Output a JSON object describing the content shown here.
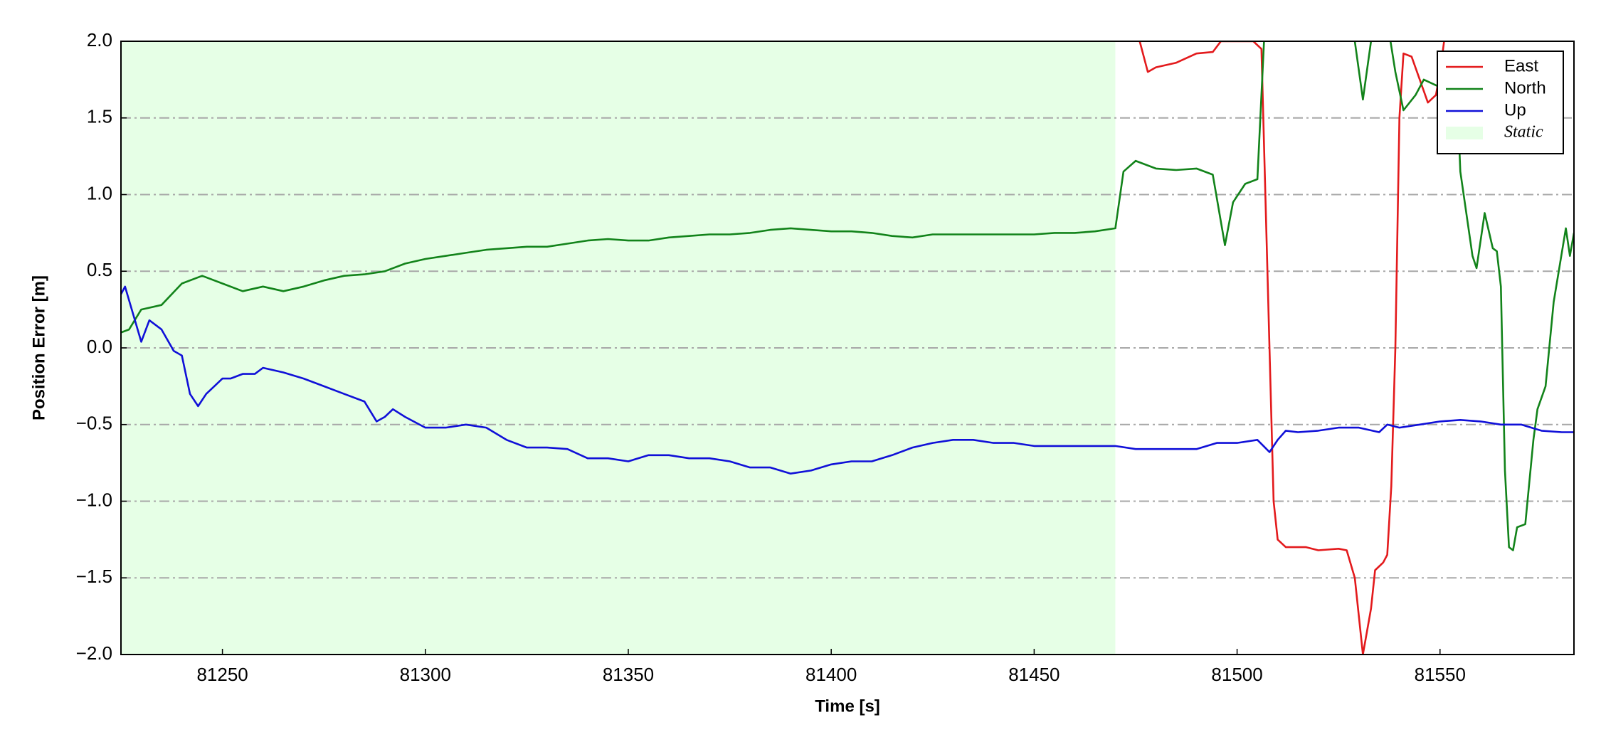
{
  "chart_data": {
    "type": "line",
    "xlabel": "Time [s]",
    "ylabel": "Position Error [m]",
    "xlim": [
      81225,
      81583
    ],
    "ylim": [
      -2.0,
      2.0
    ],
    "xticks": [
      81250,
      81300,
      81350,
      81400,
      81450,
      81500,
      81550
    ],
    "yticks": [
      {
        "value": -2.0,
        "label": "−2.0"
      },
      {
        "value": -1.5,
        "label": "−1.5"
      },
      {
        "value": -1.0,
        "label": "−1.0"
      },
      {
        "value": -0.5,
        "label": "−0.5"
      },
      {
        "value": 0.0,
        "label": "0.0"
      },
      0.5,
      {
        "value": 1.0,
        "label": "1.0"
      },
      1.5,
      {
        "value": 2.0,
        "label": "2.0"
      }
    ],
    "grid": true,
    "legend": "upper right",
    "shaded_regions": [
      {
        "name": "Static",
        "color": "#e6ffe6",
        "x": [
          81225,
          81470
        ]
      }
    ],
    "series": [
      {
        "name": "East",
        "color": "#e31a1c",
        "x": [
          81474,
          81476,
          81478,
          81480,
          81485,
          81490,
          81494,
          81496,
          81500,
          81504,
          81506,
          81509,
          81510,
          81512,
          81517,
          81520,
          81525,
          81527,
          81529,
          81531,
          81533,
          81534,
          81536,
          81537,
          81538,
          81539,
          81540,
          81541,
          81543,
          81545,
          81547,
          81549,
          81550,
          81551,
          81552
        ],
        "values": [
          2.3,
          2.0,
          1.8,
          1.83,
          1.86,
          1.92,
          1.93,
          2.0,
          2.0,
          2.0,
          1.95,
          -1.0,
          -1.25,
          -1.3,
          -1.3,
          -1.32,
          -1.31,
          -1.32,
          -1.5,
          -2.0,
          -1.7,
          -1.45,
          -1.4,
          -1.35,
          -0.9,
          0.0,
          1.5,
          1.92,
          1.9,
          1.75,
          1.6,
          1.65,
          1.8,
          2.0,
          2.2
        ]
      },
      {
        "name": "North",
        "color": "#12831a",
        "x": [
          81225,
          81227,
          81230,
          81235,
          81240,
          81245,
          81250,
          81255,
          81260,
          81265,
          81270,
          81275,
          81280,
          81285,
          81290,
          81295,
          81300,
          81305,
          81310,
          81315,
          81320,
          81325,
          81330,
          81335,
          81340,
          81345,
          81350,
          81355,
          81360,
          81365,
          81370,
          81375,
          81380,
          81385,
          81390,
          81395,
          81400,
          81405,
          81410,
          81415,
          81420,
          81425,
          81430,
          81435,
          81440,
          81445,
          81450,
          81455,
          81460,
          81465,
          81470,
          81472,
          81475,
          81480,
          81485,
          81490,
          81494,
          81497,
          81499,
          81502,
          81505,
          81507,
          81529,
          81531,
          81533,
          81536,
          81539,
          81541,
          81544,
          81546,
          81550,
          81554,
          81555,
          81558,
          81559,
          81561,
          81563,
          81564,
          81565,
          81566,
          81567,
          81568,
          81569,
          81571,
          81573,
          81574,
          81576,
          81578,
          81581,
          81582,
          81583
        ],
        "values": [
          0.1,
          0.12,
          0.25,
          0.28,
          0.42,
          0.47,
          0.42,
          0.37,
          0.4,
          0.37,
          0.4,
          0.44,
          0.47,
          0.48,
          0.5,
          0.55,
          0.58,
          0.6,
          0.62,
          0.64,
          0.65,
          0.66,
          0.66,
          0.68,
          0.7,
          0.71,
          0.7,
          0.7,
          0.72,
          0.73,
          0.74,
          0.74,
          0.75,
          0.77,
          0.78,
          0.77,
          0.76,
          0.76,
          0.75,
          0.73,
          0.72,
          0.74,
          0.74,
          0.74,
          0.74,
          0.74,
          0.74,
          0.75,
          0.75,
          0.76,
          0.78,
          1.15,
          1.22,
          1.17,
          1.16,
          1.17,
          1.13,
          0.67,
          0.95,
          1.07,
          1.1,
          2.2,
          2.0,
          1.62,
          2.0,
          2.3,
          1.8,
          1.55,
          1.65,
          1.75,
          1.7,
          1.8,
          1.15,
          0.6,
          0.52,
          0.88,
          0.65,
          0.63,
          0.4,
          -0.8,
          -1.3,
          -1.32,
          -1.17,
          -1.15,
          -0.6,
          -0.4,
          -0.25,
          0.3,
          0.78,
          0.6,
          0.75
        ]
      },
      {
        "name": "Up",
        "color": "#1010d8",
        "x": [
          81225,
          81226,
          81230,
          81232,
          81235,
          81238,
          81240,
          81242,
          81244,
          81246,
          81248,
          81250,
          81252,
          81255,
          81258,
          81260,
          81265,
          81270,
          81275,
          81280,
          81285,
          81288,
          81290,
          81292,
          81295,
          81300,
          81305,
          81310,
          81315,
          81320,
          81325,
          81330,
          81335,
          81340,
          81345,
          81350,
          81355,
          81360,
          81365,
          81370,
          81375,
          81380,
          81385,
          81390,
          81395,
          81400,
          81405,
          81410,
          81415,
          81420,
          81425,
          81430,
          81435,
          81440,
          81445,
          81450,
          81455,
          81460,
          81465,
          81470,
          81475,
          81480,
          81485,
          81490,
          81495,
          81500,
          81505,
          81508,
          81510,
          81512,
          81515,
          81520,
          81525,
          81530,
          81535,
          81537,
          81540,
          81545,
          81550,
          81555,
          81560,
          81565,
          81570,
          81575,
          81580,
          81583
        ],
        "values": [
          0.35,
          0.4,
          0.04,
          0.18,
          0.12,
          -0.02,
          -0.05,
          -0.3,
          -0.38,
          -0.3,
          -0.25,
          -0.2,
          -0.2,
          -0.17,
          -0.17,
          -0.13,
          -0.16,
          -0.2,
          -0.25,
          -0.3,
          -0.35,
          -0.48,
          -0.45,
          -0.4,
          -0.45,
          -0.52,
          -0.52,
          -0.5,
          -0.52,
          -0.6,
          -0.65,
          -0.65,
          -0.66,
          -0.72,
          -0.72,
          -0.74,
          -0.7,
          -0.7,
          -0.72,
          -0.72,
          -0.74,
          -0.78,
          -0.78,
          -0.82,
          -0.8,
          -0.76,
          -0.74,
          -0.74,
          -0.7,
          -0.65,
          -0.62,
          -0.6,
          -0.6,
          -0.62,
          -0.62,
          -0.64,
          -0.64,
          -0.64,
          -0.64,
          -0.64,
          -0.66,
          -0.66,
          -0.66,
          -0.66,
          -0.62,
          -0.62,
          -0.6,
          -0.68,
          -0.6,
          -0.54,
          -0.55,
          -0.54,
          -0.52,
          -0.52,
          -0.55,
          -0.5,
          -0.52,
          -0.5,
          -0.48,
          -0.47,
          -0.48,
          -0.5,
          -0.5,
          -0.54,
          -0.55,
          -0.55
        ]
      }
    ]
  }
}
